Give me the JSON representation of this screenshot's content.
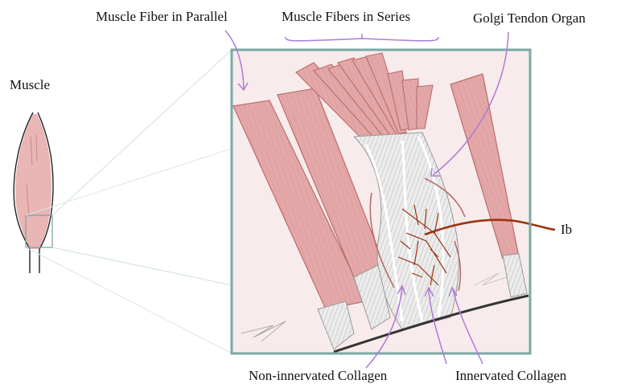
{
  "labels": {
    "parallel": "Muscle Fiber in Parallel",
    "series": "Muscle Fibers in Series",
    "golgi": "Golgi Tendon Organ",
    "muscle": "Muscle",
    "ib": "Ib",
    "non_innervated": "Non-innervated Collagen",
    "innervated": "Innervated Collagen"
  },
  "colors": {
    "frame": "#7aa9a5",
    "background": "#f8ebeb",
    "muscle_fiber": "#e4a7a7",
    "muscle_stroke": "#b96d6d",
    "nerve": "#9b3412",
    "pointer": "#b07ad6",
    "collagen": "#e9e9e9",
    "bone_line": "#333333"
  }
}
